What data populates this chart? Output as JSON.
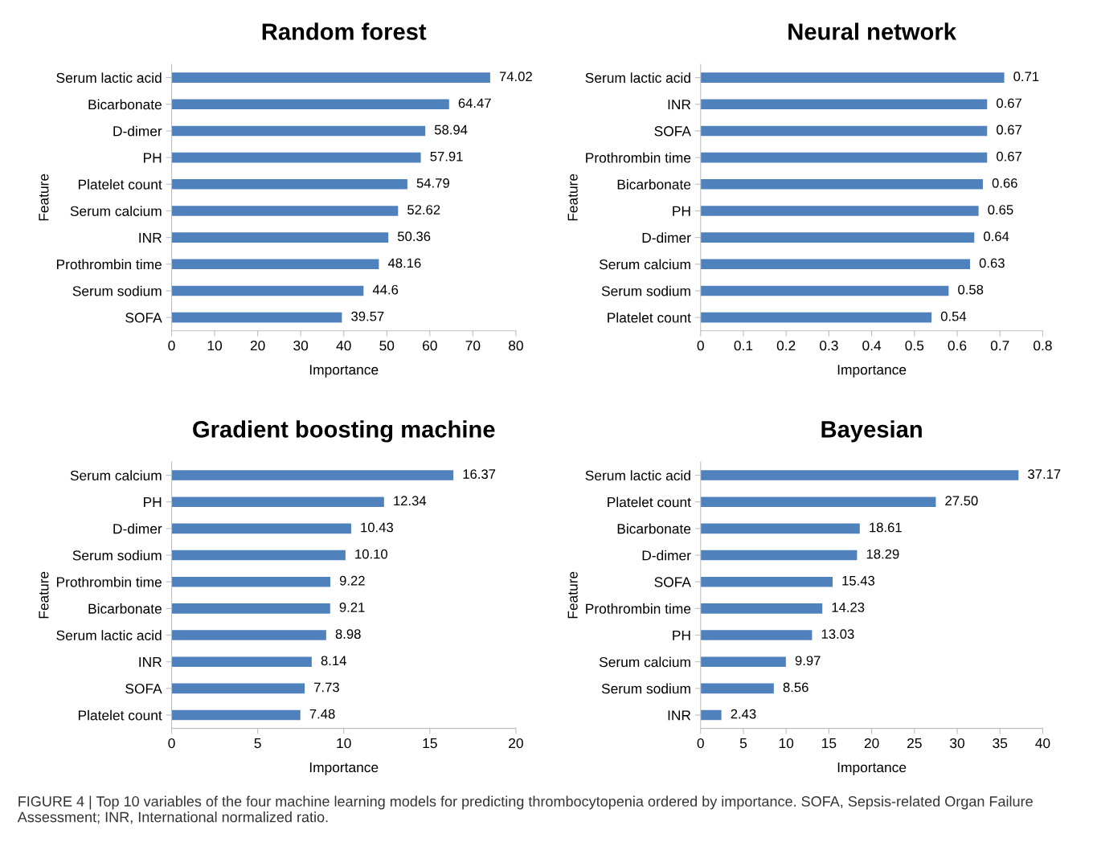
{
  "chart_data": [
    {
      "type": "bar",
      "orientation": "horizontal",
      "title": "Random forest",
      "xlabel": "Importance",
      "ylabel": "Feature",
      "categories": [
        "Serum lactic acid",
        "Bicarbonate",
        "D-dimer",
        "PH",
        "Platelet count",
        "Serum calcium",
        "INR",
        "Prothrombin time",
        "Serum sodium",
        "SOFA"
      ],
      "values": [
        74.02,
        64.47,
        58.94,
        57.91,
        54.79,
        52.62,
        50.36,
        48.16,
        44.6,
        39.57
      ],
      "color": "#4f81bd",
      "xlim": [
        0,
        80
      ],
      "xticks": [
        0,
        10,
        20,
        30,
        40,
        50,
        60,
        70,
        80
      ],
      "data_labels": true,
      "grid": false,
      "legend": false
    },
    {
      "type": "bar",
      "orientation": "horizontal",
      "title": "Neural network",
      "xlabel": "Importance",
      "ylabel": "Feature",
      "categories": [
        "Serum lactic acid",
        "INR",
        "SOFA",
        "Prothrombin time",
        "Bicarbonate",
        "PH",
        "D-dimer",
        "Serum calcium",
        "Serum sodium",
        "Platelet count"
      ],
      "values": [
        0.71,
        0.67,
        0.67,
        0.67,
        0.66,
        0.65,
        0.64,
        0.63,
        0.58,
        0.54
      ],
      "color": "#4f81bd",
      "xlim": [
        0,
        0.8
      ],
      "xticks": [
        0,
        0.1,
        0.2,
        0.3,
        0.4,
        0.5,
        0.6,
        0.7,
        0.8
      ],
      "data_labels": true,
      "grid": false,
      "legend": false
    },
    {
      "type": "bar",
      "orientation": "horizontal",
      "title": "Gradient boosting machine",
      "xlabel": "Importance",
      "ylabel": "Feature",
      "categories": [
        "Serum calcium",
        "PH",
        "D-dimer",
        "Serum sodium",
        "Prothrombin time",
        "Bicarbonate",
        "Serum lactic acid",
        "INR",
        "SOFA",
        "Platelet count"
      ],
      "values": [
        16.37,
        12.34,
        10.43,
        10.1,
        9.22,
        9.21,
        8.98,
        8.14,
        7.73,
        7.48
      ],
      "value_labels": [
        "16.37",
        "12.34",
        "10.43",
        "10.10",
        "9.22",
        "9.21",
        "8.98",
        "8.14",
        "7.73",
        "7.48"
      ],
      "color": "#4f81bd",
      "xlim": [
        0,
        20
      ],
      "xticks": [
        0,
        5,
        10,
        15,
        20
      ],
      "grid": false,
      "legend": false
    },
    {
      "type": "bar",
      "orientation": "horizontal",
      "title": "Bayesian",
      "xlabel": "Importance",
      "ylabel": "Feature",
      "categories": [
        "Serum lactic acid",
        "Platelet count",
        "Bicarbonate",
        "D-dimer",
        "SOFA",
        "Prothrombin time",
        "PH",
        "Serum calcium",
        "Serum sodium",
        "INR"
      ],
      "values": [
        37.17,
        27.5,
        18.61,
        18.29,
        15.43,
        14.23,
        13.03,
        9.97,
        8.56,
        2.43
      ],
      "value_labels": [
        "37.17",
        "27.50",
        "18.61",
        "18.29",
        "15.43",
        "14.23",
        "13.03",
        "9.97",
        "8.56",
        "2.43"
      ],
      "color": "#4f81bd",
      "xlim": [
        0,
        40
      ],
      "xticks": [
        0,
        5,
        10,
        15,
        20,
        25,
        30,
        35,
        40
      ],
      "grid": false,
      "legend": false,
      "annotations": [
        "FIGURE 4 | Top 10 variables of the four machine learning models for predicting thrombocytopenia ordered by importance. SOFA, Sepsis-related Organ Failure Assessment; INR, International normalized ratio."
      ]
    }
  ]
}
